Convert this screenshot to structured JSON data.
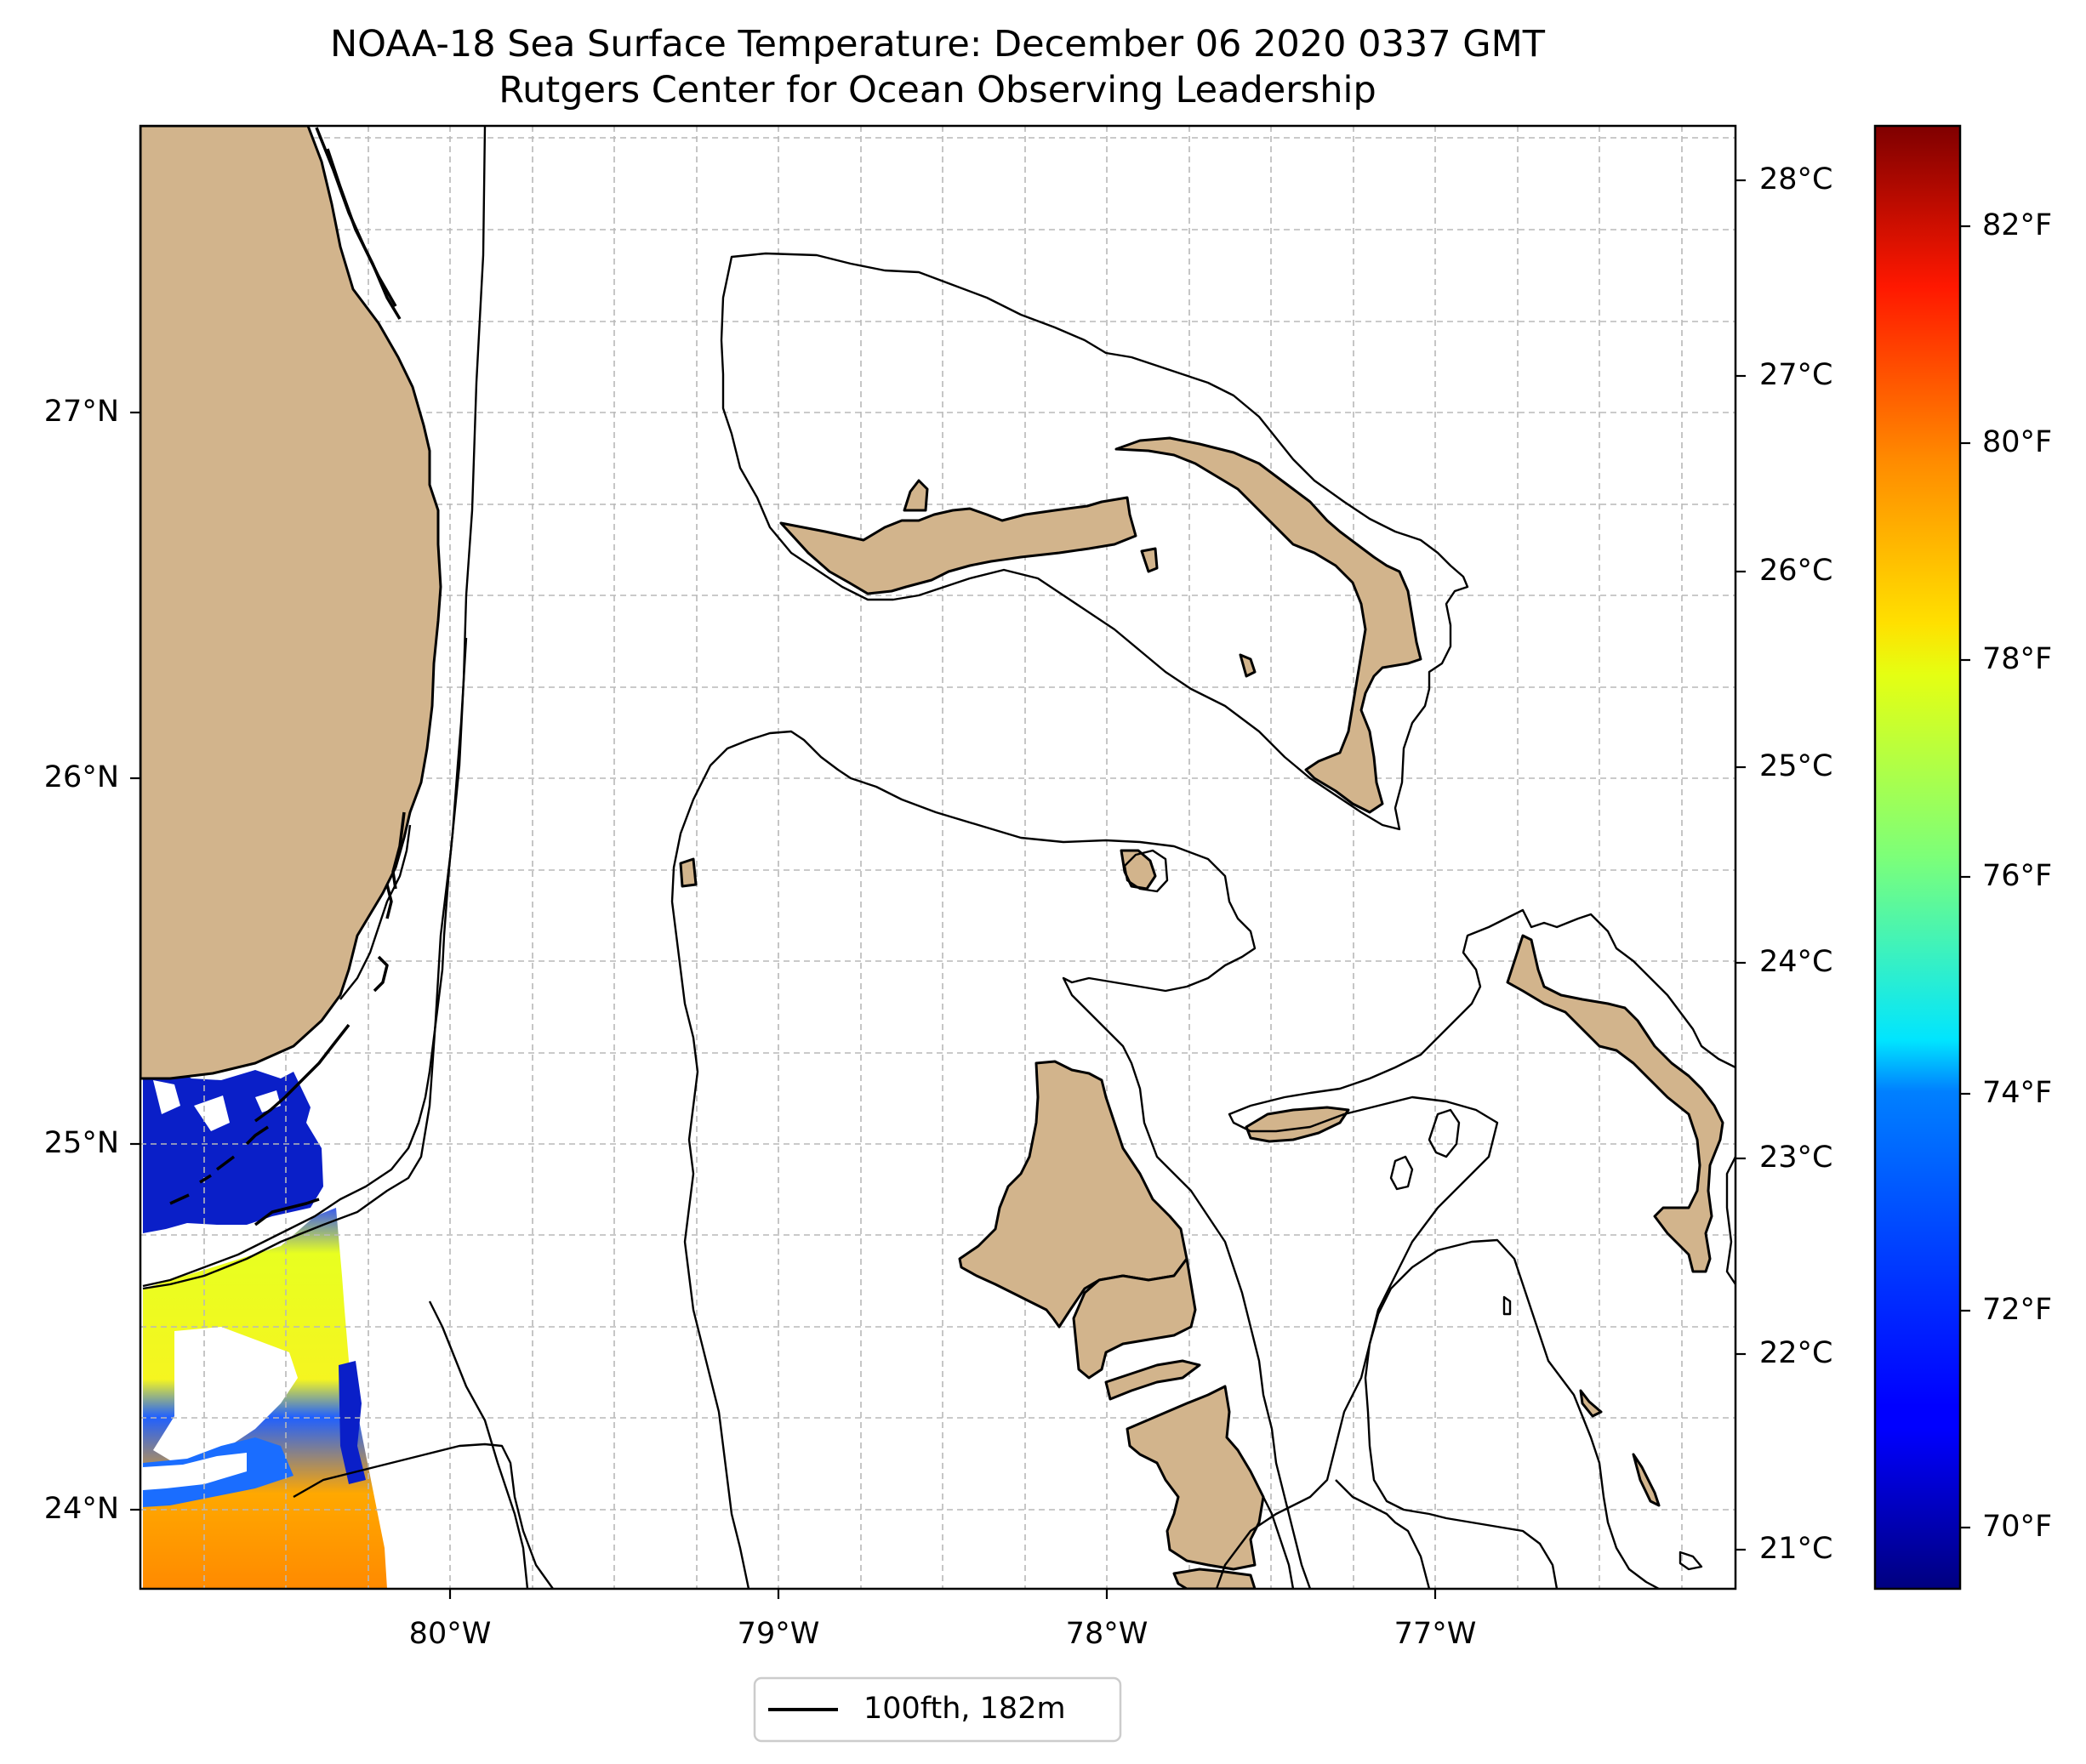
{
  "title": {
    "line1": "NOAA-18 Sea Surface Temperature: December 06 2020 0337 GMT",
    "line2": "Rutgers Center for Ocean Observing Leadership"
  },
  "map": {
    "lon_range": [
      -80.95,
      -76.1
    ],
    "lat_range": [
      23.75,
      27.78
    ],
    "lon_ticks": [
      {
        "value": -80,
        "label": "80°W"
      },
      {
        "value": -79,
        "label": "79°W"
      },
      {
        "value": -78,
        "label": "78°W"
      },
      {
        "value": -77,
        "label": "77°W"
      }
    ],
    "lat_ticks": [
      {
        "value": 24,
        "label": "24°N"
      },
      {
        "value": 25,
        "label": "25°N"
      },
      {
        "value": 26,
        "label": "26°N"
      },
      {
        "value": 27,
        "label": "27°N"
      }
    ],
    "celsius_ticks": [
      "28°C",
      "27°C",
      "26°C",
      "25°C",
      "24°C",
      "23°C",
      "22°C",
      "21°C"
    ],
    "land_color": "#d2b48c"
  },
  "colorbar": {
    "colormap": "jet",
    "fahrenheit_ticks": [
      "82°F",
      "80°F",
      "78°F",
      "76°F",
      "74°F",
      "72°F",
      "70°F"
    ]
  },
  "legend": {
    "label": "100fth, 182m"
  }
}
